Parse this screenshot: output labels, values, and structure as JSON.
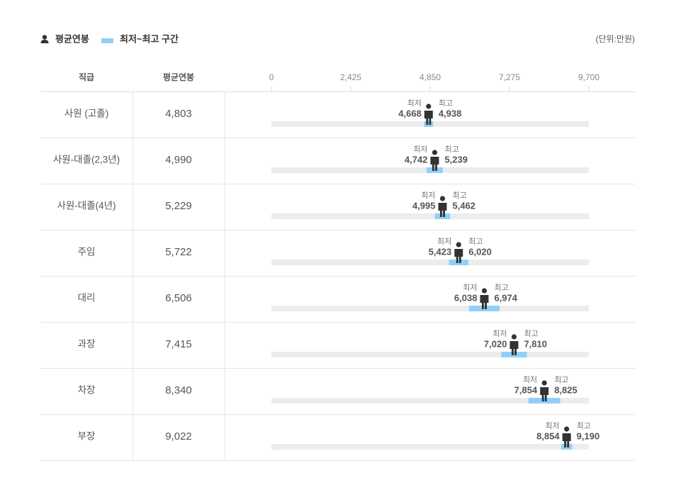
{
  "chart_data": {
    "type": "range",
    "unit": "(단위:만원)",
    "columns": [
      "직급",
      "평균연봉"
    ],
    "low_label": "최저",
    "high_label": "최고",
    "categories": [
      "사원 (고졸)",
      "사원-대졸(2,3년)",
      "사원-대졸(4년)",
      "주임",
      "대리",
      "과장",
      "차장",
      "부장"
    ],
    "xlim": [
      0,
      9700
    ],
    "xticks": [
      0,
      {
        "value": 2425,
        "label": "2,425"
      },
      {
        "value": 4850,
        "label": "4,850"
      },
      {
        "value": 7275,
        "label": "7,275"
      },
      {
        "value": 9700,
        "label": "9,700"
      }
    ],
    "series": [
      {
        "name": "평균연봉",
        "color": "#333333",
        "values": [
          4803,
          4990,
          5229,
          5722,
          6506,
          7415,
          8340,
          9022
        ],
        "value_labels": [
          "4,803",
          "4,990",
          "5,229",
          "5,722",
          "6,506",
          "7,415",
          "8,340",
          "9,022"
        ]
      },
      {
        "name": "최저~최고 구간",
        "color": "#90d0f8",
        "low": [
          4668,
          4742,
          4995,
          5423,
          6038,
          7020,
          7854,
          8854
        ],
        "low_labels": [
          "4,668",
          "4,742",
          "4,995",
          "5,423",
          "6,038",
          "7,020",
          "7,854",
          "8,854"
        ],
        "high": [
          4938,
          5239,
          5462,
          6020,
          6974,
          7810,
          8825,
          9190
        ],
        "high_labels": [
          "4,938",
          "5,239",
          "5,462",
          "6,020",
          "6,974",
          "7,810",
          "8,825",
          "9,190"
        ]
      }
    ]
  }
}
